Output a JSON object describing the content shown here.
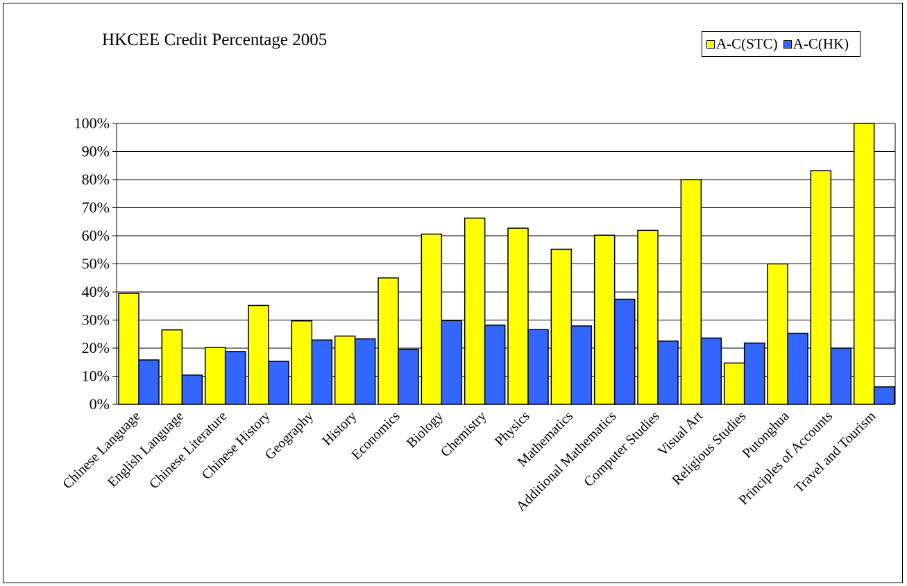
{
  "chart_data": {
    "type": "bar",
    "title": "HKCEE Credit Percentage 2005",
    "categories": [
      "Chinese Language",
      "English Language",
      "Chinese Literature",
      "Chinese History",
      "Geography",
      "History",
      "Economics",
      "Biology",
      "Chemistry",
      "Physics",
      "Mathematics",
      "Additional Mathematics",
      "Computer Studies",
      "Visual Art",
      "Religious Studies",
      "Putonghua",
      "Principles of Accounts",
      "Travel and Tourism"
    ],
    "series": [
      {
        "name": "A-C(STC)",
        "color": "#ffff00",
        "values": [
          39.5,
          26.5,
          20.2,
          35.2,
          29.7,
          24.3,
          45.0,
          60.6,
          66.3,
          62.7,
          55.2,
          60.2,
          61.9,
          80.0,
          14.7,
          50.0,
          83.2,
          100.0
        ]
      },
      {
        "name": "A-C(HK)",
        "color": "#3366ff",
        "values": [
          15.8,
          10.4,
          18.8,
          15.3,
          22.9,
          23.3,
          19.6,
          29.8,
          28.2,
          26.6,
          27.9,
          37.4,
          22.5,
          23.6,
          21.8,
          25.3,
          20.0,
          6.2
        ]
      }
    ],
    "yticks": [
      "0%",
      "10%",
      "20%",
      "30%",
      "40%",
      "50%",
      "60%",
      "70%",
      "80%",
      "90%",
      "100%"
    ],
    "ylim": [
      0,
      100
    ],
    "xlabel": "",
    "ylabel": "",
    "grid": true,
    "legend_position": "top-right"
  }
}
